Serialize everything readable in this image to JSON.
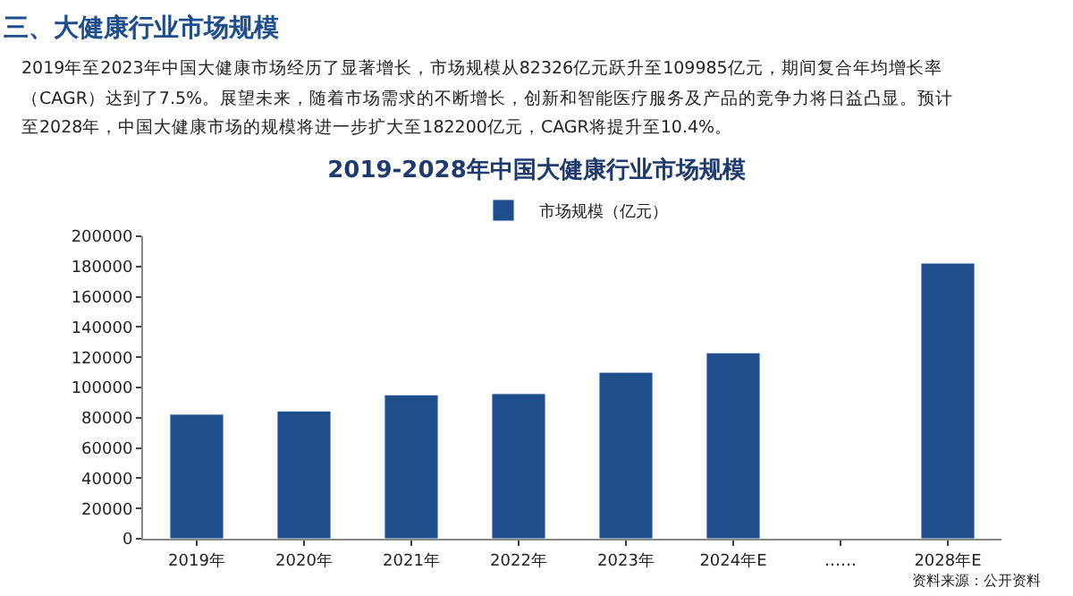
{
  "chart_data": {
    "type": "bar",
    "title": "2019-2028年中国大健康行业市场规模",
    "annotations": [
      "三、大健康行业市场规模",
      "2019年至2023年中国大健康市场经历了显著增长，市场规模从82326亿元跃升至109985亿元，期间复合年均增长率",
      "（CAGR）达到了7.5%。展望未来，随着市场需求的不断增长，创新和智能医疗服务及产品的竞争力将日益凸显。预计",
      "至2028年，中国大健康市场的规模将进一步扩大至182200亿元，CAGR将提升至10.4%。",
      "资料来源：公开资料"
    ],
    "categories": [
      "2019年",
      "2020年",
      "2021年",
      "2022年",
      "2023年",
      "2024年E",
      "……",
      "2028年E"
    ],
    "series": [
      {
        "name": "市场规模（亿元）",
        "color": "#1f4e8c",
        "values": [
          82300,
          84400,
          95100,
          95900,
          110000,
          122900,
          null,
          182200
        ]
      }
    ],
    "ylim": [
      0,
      200000
    ],
    "yticks": [
      0,
      20000,
      40000,
      60000,
      80000,
      100000,
      120000,
      140000,
      160000,
      180000,
      200000
    ],
    "grid": false,
    "legend": "top"
  }
}
